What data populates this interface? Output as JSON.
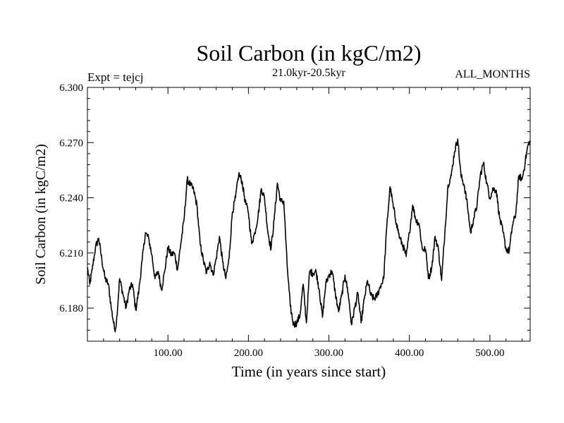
{
  "chart_data": {
    "type": "line",
    "title": "Soil Carbon (in kgC/m2)",
    "subtitle": "21.0kyr-20.5kyr",
    "left_annotation": "Expt = tejcj",
    "right_annotation": "ALL_MONTHS",
    "xlabel": "Time (in years since start)",
    "ylabel": "Soil Carbon (in kgC/m2)",
    "xlim": [
      0,
      550
    ],
    "ylim": [
      6.162,
      6.3
    ],
    "x_ticks": [
      100,
      200,
      300,
      400,
      500
    ],
    "x_tick_labels": [
      "100.00",
      "200.00",
      "300.00",
      "400.00",
      "500.00"
    ],
    "y_ticks": [
      6.18,
      6.21,
      6.24,
      6.27,
      6.3
    ],
    "y_tick_labels": [
      "6.180",
      "6.210",
      "6.240",
      "6.270",
      "6.300"
    ],
    "grid": false,
    "series": [
      {
        "name": "Soil Carbon",
        "x": [
          0,
          3,
          6,
          10,
          14,
          18,
          22,
          26,
          30,
          34,
          36,
          40,
          44,
          48,
          52,
          56,
          60,
          64,
          68,
          72,
          76,
          80,
          84,
          88,
          92,
          96,
          100,
          104,
          108,
          112,
          116,
          120,
          124,
          128,
          132,
          136,
          140,
          144,
          148,
          152,
          156,
          160,
          164,
          168,
          172,
          176,
          180,
          184,
          188,
          192,
          196,
          200,
          204,
          208,
          212,
          216,
          220,
          224,
          228,
          232,
          236,
          240,
          244,
          248,
          252,
          256,
          260,
          264,
          268,
          272,
          276,
          280,
          284,
          288,
          292,
          296,
          300,
          304,
          308,
          312,
          316,
          320,
          324,
          328,
          332,
          336,
          340,
          344,
          348,
          352,
          356,
          360,
          364,
          368,
          372,
          376,
          380,
          384,
          388,
          392,
          396,
          400,
          404,
          408,
          412,
          416,
          420,
          424,
          428,
          432,
          436,
          440,
          444,
          448,
          452,
          456,
          460,
          464,
          468,
          472,
          476,
          480,
          484,
          488,
          492,
          496,
          500,
          504,
          508,
          512,
          516,
          520,
          524,
          528,
          532,
          536,
          540,
          544,
          547,
          550
        ],
        "values": [
          6.202,
          6.193,
          6.201,
          6.213,
          6.218,
          6.206,
          6.196,
          6.193,
          6.179,
          6.168,
          6.172,
          6.196,
          6.188,
          6.18,
          6.19,
          6.193,
          6.179,
          6.19,
          6.206,
          6.221,
          6.218,
          6.209,
          6.196,
          6.2,
          6.19,
          6.2,
          6.213,
          6.209,
          6.21,
          6.201,
          6.215,
          6.228,
          6.25,
          6.247,
          6.244,
          6.236,
          6.215,
          6.206,
          6.199,
          6.205,
          6.198,
          6.207,
          6.219,
          6.205,
          6.196,
          6.207,
          6.232,
          6.24,
          6.253,
          6.249,
          6.238,
          6.232,
          6.215,
          6.221,
          6.23,
          6.245,
          6.24,
          6.222,
          6.212,
          6.228,
          6.248,
          6.238,
          6.238,
          6.204,
          6.181,
          6.171,
          6.172,
          6.176,
          6.193,
          6.172,
          6.2,
          6.199,
          6.2,
          6.19,
          6.175,
          6.193,
          6.198,
          6.2,
          6.188,
          6.178,
          6.187,
          6.198,
          6.188,
          6.171,
          6.18,
          6.188,
          6.172,
          6.185,
          6.195,
          6.187,
          6.185,
          6.187,
          6.192,
          6.196,
          6.225,
          6.246,
          6.235,
          6.226,
          6.218,
          6.214,
          6.208,
          6.221,
          6.236,
          6.228,
          6.226,
          6.212,
          6.212,
          6.196,
          6.203,
          6.219,
          6.212,
          6.195,
          6.221,
          6.247,
          6.252,
          6.265,
          6.272,
          6.252,
          6.247,
          6.236,
          6.221,
          6.229,
          6.236,
          6.252,
          6.259,
          6.248,
          6.24,
          6.245,
          6.244,
          6.229,
          6.222,
          6.212,
          6.211,
          6.225,
          6.231,
          6.252,
          6.25,
          6.26,
          6.268,
          6.271
        ]
      }
    ]
  }
}
